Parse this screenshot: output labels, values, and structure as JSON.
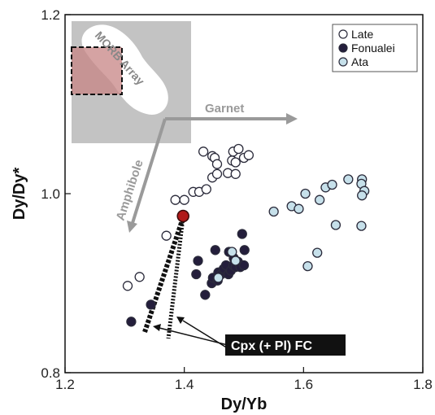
{
  "chart_data": {
    "type": "scatter",
    "xlabel": "Dy/Yb",
    "ylabel": "Dy/Dy*",
    "xlim": [
      1.2,
      1.8
    ],
    "ylim": [
      0.8,
      1.2
    ],
    "xticks": [
      "1.2",
      "1.4",
      "1.6",
      "1.8"
    ],
    "yticks": [
      "0.8",
      "1.0",
      "1.2"
    ],
    "legend_position": "top-right",
    "series": [
      {
        "name": "Late",
        "marker": "open-circle",
        "color": "#ffffff",
        "points": [
          [
            1.305,
            0.897
          ],
          [
            1.325,
            0.907
          ],
          [
            1.37,
            0.953
          ],
          [
            1.385,
            0.993
          ],
          [
            1.4,
            0.993
          ],
          [
            1.415,
            1.002
          ],
          [
            1.425,
            1.002
          ],
          [
            1.437,
            1.005
          ],
          [
            1.432,
            1.047
          ],
          [
            1.447,
            1.042
          ],
          [
            1.451,
            1.04
          ],
          [
            1.455,
            1.033
          ],
          [
            1.447,
            1.018
          ],
          [
            1.455,
            1.022
          ],
          [
            1.473,
            1.023
          ],
          [
            1.486,
            1.022
          ],
          [
            1.48,
            1.037
          ],
          [
            1.486,
            1.035
          ],
          [
            1.482,
            1.047
          ],
          [
            1.491,
            1.05
          ],
          [
            1.5,
            1.04
          ],
          [
            1.508,
            1.043
          ]
        ]
      },
      {
        "name": "Fonualei",
        "marker": "filled-circle",
        "color": "#241e3c",
        "points": [
          [
            1.311,
            0.857
          ],
          [
            1.344,
            0.876
          ],
          [
            1.42,
            0.91
          ],
          [
            1.423,
            0.925
          ],
          [
            1.435,
            0.887
          ],
          [
            1.446,
            0.9
          ],
          [
            1.448,
            0.906
          ],
          [
            1.456,
            0.903
          ],
          [
            1.457,
            0.912
          ],
          [
            1.462,
            0.91
          ],
          [
            1.466,
            0.916
          ],
          [
            1.47,
            0.92
          ],
          [
            1.474,
            0.91
          ],
          [
            1.478,
            0.914
          ],
          [
            1.482,
            0.92
          ],
          [
            1.486,
            0.918
          ],
          [
            1.49,
            0.924
          ],
          [
            1.494,
            0.918
          ],
          [
            1.5,
            0.92
          ],
          [
            1.452,
            0.937
          ],
          [
            1.475,
            0.935
          ],
          [
            1.483,
            0.928
          ],
          [
            1.501,
            0.937
          ],
          [
            1.497,
            0.955
          ]
        ]
      },
      {
        "name": "Ata",
        "marker": "filled-circle",
        "color": "#c6e0ea",
        "points": [
          [
            1.457,
            0.906
          ],
          [
            1.486,
            0.925
          ],
          [
            1.48,
            0.935
          ],
          [
            1.55,
            0.98
          ],
          [
            1.58,
            0.986
          ],
          [
            1.592,
            0.983
          ],
          [
            1.603,
            1.0
          ],
          [
            1.627,
            0.993
          ],
          [
            1.637,
            1.007
          ],
          [
            1.648,
            1.01
          ],
          [
            1.675,
            1.016
          ],
          [
            1.698,
            1.016
          ],
          [
            1.697,
            1.011
          ],
          [
            1.702,
            1.003
          ],
          [
            1.698,
            0.998
          ],
          [
            1.607,
            0.919
          ],
          [
            1.623,
            0.934
          ],
          [
            1.654,
            0.965
          ],
          [
            1.697,
            0.964
          ]
        ]
      }
    ],
    "highlight_point": {
      "x": 1.398,
      "y": 0.975,
      "color": "#b01a1a"
    },
    "annotations": {
      "morb_array": "MORB Array",
      "garnet": "Garnet",
      "amphibole": "Amphibole",
      "fc_label": "Cpx (+ Pl) FC"
    }
  }
}
